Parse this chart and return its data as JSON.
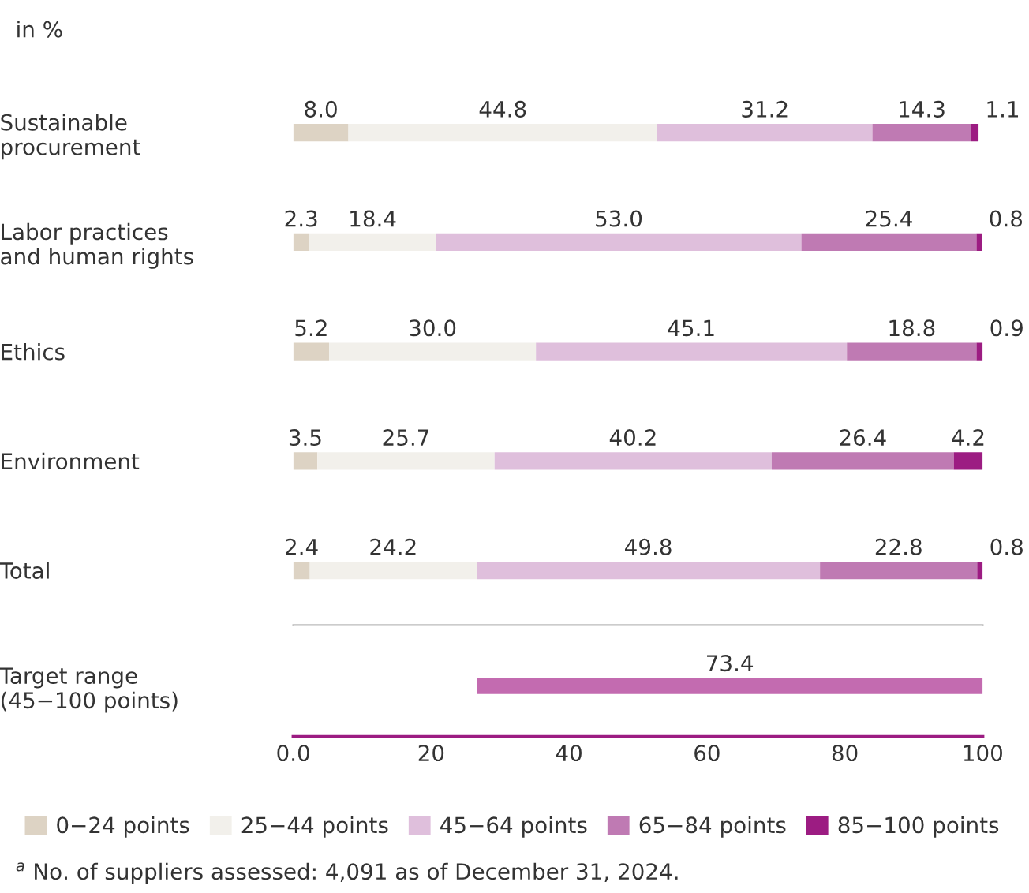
{
  "chart_data": [
    {
      "type": "bar",
      "orientation": "horizontal",
      "stacked": true,
      "subtitle": "in %",
      "categories": [
        "Sustainable\nprocurement",
        "Labor practices\nand human rights",
        "Ethics",
        "Environment",
        "Total"
      ],
      "series": [
        {
          "name": "0−24 points",
          "color": "#ddd3c4",
          "values": [
            8.0,
            2.3,
            5.2,
            3.5,
            2.4
          ],
          "value_labels": [
            "8.0",
            "2.3",
            "5.2",
            "3.5",
            "2.4"
          ]
        },
        {
          "name": "25−44 points",
          "color": "#f2f0eb",
          "values": [
            44.8,
            18.4,
            30.0,
            25.7,
            24.2
          ],
          "value_labels": [
            "44.8",
            "18.4",
            "30.0",
            "25.7",
            "24.2"
          ]
        },
        {
          "name": "45−64 points",
          "color": "#dfbfdc",
          "values": [
            31.2,
            53.0,
            45.1,
            40.2,
            49.8
          ],
          "value_labels": [
            "31.2",
            "53.0",
            "45.1",
            "40.2",
            "49.8"
          ]
        },
        {
          "name": "65−84 points",
          "color": "#bf7ab3",
          "values": [
            14.3,
            25.4,
            18.8,
            26.4,
            22.8
          ],
          "value_labels": [
            "14.3",
            "25.4",
            "18.8",
            "26.4",
            "22.8"
          ]
        },
        {
          "name": "85−100 points",
          "color": "#9c1c82",
          "values": [
            1.1,
            0.8,
            0.9,
            4.2,
            0.8
          ],
          "value_labels": [
            "1.1",
            "0.8",
            "0.9",
            "4.2",
            "0.8"
          ]
        }
      ],
      "xlim": [
        0,
        100
      ],
      "tick_labels": "y",
      "legend": "bottom"
    },
    {
      "type": "bar",
      "orientation": "horizontal",
      "categories": [
        "Target range\n(45−100 points)"
      ],
      "series": [
        {
          "color": "#c36bb0",
          "values": [
            73.4
          ],
          "base": [
            26.6
          ]
        }
      ],
      "xlim": [
        0,
        100
      ],
      "xticks": [
        {
          "value": 0,
          "label": "0.0"
        },
        20,
        40,
        60,
        80,
        100
      ],
      "data_labels": true,
      "annotations": [
        "$^{a}$ No. of suppliers assessed: 4,091 as of December 31, 2024."
      ]
    }
  ]
}
